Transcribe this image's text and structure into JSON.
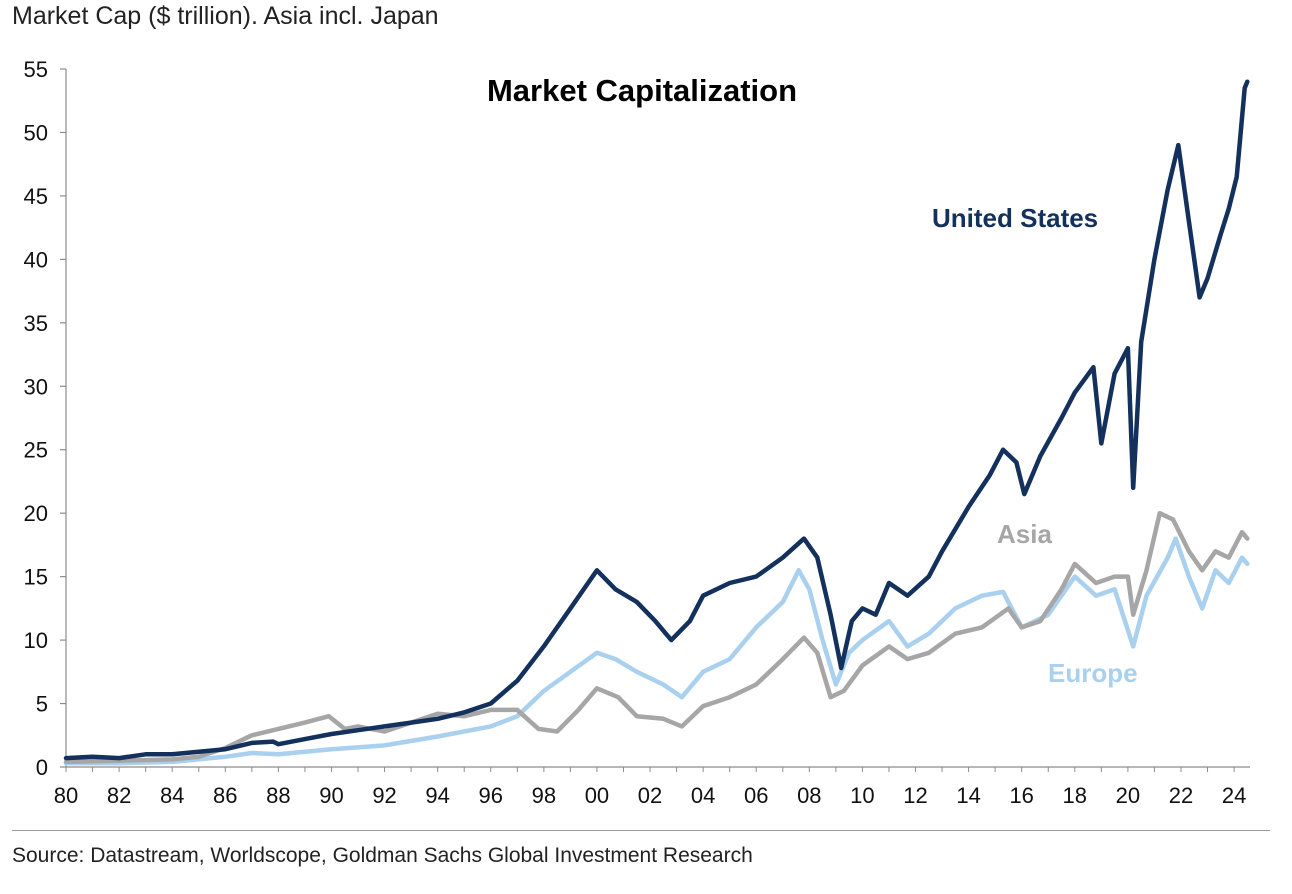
{
  "subtitle": "Market Cap ($ trillion). Asia incl. Japan",
  "source": "Source: Datastream, Worldscope, Goldman Sachs Global Investment Research",
  "chart_data": {
    "type": "line",
    "title": "Market Capitalization",
    "xlabel": "",
    "ylabel": "Market Cap ($ trillion)",
    "xlim": [
      1980,
      2024.5
    ],
    "ylim": [
      0,
      55
    ],
    "yticks": [
      0,
      5,
      10,
      15,
      20,
      25,
      30,
      35,
      40,
      45,
      50,
      55
    ],
    "xtick_labels": [
      "80",
      "82",
      "84",
      "86",
      "88",
      "90",
      "92",
      "94",
      "96",
      "98",
      "00",
      "02",
      "04",
      "06",
      "08",
      "10",
      "12",
      "14",
      "16",
      "18",
      "20",
      "22",
      "24"
    ],
    "xtick_years": [
      1980,
      1982,
      1984,
      1986,
      1988,
      1990,
      1992,
      1994,
      1996,
      1998,
      2000,
      2002,
      2004,
      2006,
      2008,
      2010,
      2012,
      2014,
      2016,
      2018,
      2020,
      2022,
      2024
    ],
    "grid": false,
    "series": [
      {
        "name": "Europe",
        "label": "Europe",
        "color": "#a9d0ee",
        "points": [
          [
            1980,
            0.3
          ],
          [
            1982,
            0.3
          ],
          [
            1984,
            0.4
          ],
          [
            1986,
            0.8
          ],
          [
            1987,
            1.1
          ],
          [
            1988,
            1.0
          ],
          [
            1990,
            1.4
          ],
          [
            1992,
            1.7
          ],
          [
            1994,
            2.4
          ],
          [
            1996,
            3.2
          ],
          [
            1997,
            4.0
          ],
          [
            1998,
            6.0
          ],
          [
            1999,
            7.5
          ],
          [
            2000,
            9.0
          ],
          [
            2000.7,
            8.5
          ],
          [
            2001.5,
            7.5
          ],
          [
            2002.5,
            6.5
          ],
          [
            2003.2,
            5.5
          ],
          [
            2004,
            7.5
          ],
          [
            2005,
            8.5
          ],
          [
            2006,
            11.0
          ],
          [
            2007,
            13.0
          ],
          [
            2007.6,
            15.5
          ],
          [
            2008,
            14.0
          ],
          [
            2008.5,
            10.0
          ],
          [
            2009,
            6.5
          ],
          [
            2009.5,
            9.0
          ],
          [
            2010,
            10.0
          ],
          [
            2011,
            11.5
          ],
          [
            2011.7,
            9.5
          ],
          [
            2012.5,
            10.5
          ],
          [
            2013.5,
            12.5
          ],
          [
            2014.5,
            13.5
          ],
          [
            2015.3,
            13.8
          ],
          [
            2016,
            11.0
          ],
          [
            2016.5,
            11.5
          ],
          [
            2017,
            12.0
          ],
          [
            2018,
            15.0
          ],
          [
            2018.8,
            13.5
          ],
          [
            2019.5,
            14.0
          ],
          [
            2020.2,
            9.5
          ],
          [
            2020.7,
            13.5
          ],
          [
            2021.5,
            16.5
          ],
          [
            2021.8,
            18.0
          ],
          [
            2022.3,
            15.0
          ],
          [
            2022.8,
            12.5
          ],
          [
            2023.3,
            15.5
          ],
          [
            2023.8,
            14.5
          ],
          [
            2024.3,
            16.5
          ],
          [
            2024.5,
            16.0
          ]
        ]
      },
      {
        "name": "Asia",
        "label": "Asia",
        "color": "#a6a6a6",
        "points": [
          [
            1980,
            0.4
          ],
          [
            1982,
            0.5
          ],
          [
            1984,
            0.6
          ],
          [
            1985,
            0.8
          ],
          [
            1986,
            1.5
          ],
          [
            1987,
            2.5
          ],
          [
            1988,
            3.0
          ],
          [
            1989,
            3.5
          ],
          [
            1989.9,
            4.0
          ],
          [
            1990.5,
            3.0
          ],
          [
            1991,
            3.2
          ],
          [
            1992,
            2.8
          ],
          [
            1993,
            3.5
          ],
          [
            1994,
            4.2
          ],
          [
            1995,
            4.0
          ],
          [
            1996,
            4.5
          ],
          [
            1997,
            4.5
          ],
          [
            1997.8,
            3.0
          ],
          [
            1998.5,
            2.8
          ],
          [
            1999.3,
            4.5
          ],
          [
            2000,
            6.2
          ],
          [
            2000.8,
            5.5
          ],
          [
            2001.5,
            4.0
          ],
          [
            2002.5,
            3.8
          ],
          [
            2003.2,
            3.2
          ],
          [
            2004,
            4.8
          ],
          [
            2005,
            5.5
          ],
          [
            2006,
            6.5
          ],
          [
            2007,
            8.5
          ],
          [
            2007.8,
            10.2
          ],
          [
            2008.3,
            9.0
          ],
          [
            2008.8,
            5.5
          ],
          [
            2009.3,
            6.0
          ],
          [
            2010,
            8.0
          ],
          [
            2011,
            9.5
          ],
          [
            2011.7,
            8.5
          ],
          [
            2012.5,
            9.0
          ],
          [
            2013.5,
            10.5
          ],
          [
            2014.5,
            11.0
          ],
          [
            2015.5,
            12.5
          ],
          [
            2016,
            11.0
          ],
          [
            2016.7,
            11.5
          ],
          [
            2017.5,
            14.0
          ],
          [
            2018,
            16.0
          ],
          [
            2018.8,
            14.5
          ],
          [
            2019.5,
            15.0
          ],
          [
            2020,
            15.0
          ],
          [
            2020.2,
            12.0
          ],
          [
            2020.7,
            15.5
          ],
          [
            2021.2,
            20.0
          ],
          [
            2021.7,
            19.5
          ],
          [
            2022.3,
            17.0
          ],
          [
            2022.8,
            15.5
          ],
          [
            2023.3,
            17.0
          ],
          [
            2023.8,
            16.5
          ],
          [
            2024.3,
            18.5
          ],
          [
            2024.5,
            18.0
          ]
        ]
      },
      {
        "name": "United States",
        "label": "United States",
        "color": "#13315c",
        "points": [
          [
            1980,
            0.7
          ],
          [
            1981,
            0.8
          ],
          [
            1982,
            0.7
          ],
          [
            1983,
            1.0
          ],
          [
            1984,
            1.0
          ],
          [
            1985,
            1.2
          ],
          [
            1986,
            1.4
          ],
          [
            1987,
            1.9
          ],
          [
            1987.8,
            2.0
          ],
          [
            1988,
            1.8
          ],
          [
            1989,
            2.2
          ],
          [
            1990,
            2.6
          ],
          [
            1991,
            2.9
          ],
          [
            1992,
            3.2
          ],
          [
            1993,
            3.5
          ],
          [
            1994,
            3.8
          ],
          [
            1995,
            4.3
          ],
          [
            1996,
            5.0
          ],
          [
            1997,
            6.8
          ],
          [
            1998,
            9.5
          ],
          [
            1999,
            12.5
          ],
          [
            2000,
            15.5
          ],
          [
            2000.7,
            14.0
          ],
          [
            2001.5,
            13.0
          ],
          [
            2002.2,
            11.5
          ],
          [
            2002.8,
            10.0
          ],
          [
            2003.5,
            11.5
          ],
          [
            2004,
            13.5
          ],
          [
            2005,
            14.5
          ],
          [
            2006,
            15.0
          ],
          [
            2007,
            16.5
          ],
          [
            2007.8,
            18.0
          ],
          [
            2008.3,
            16.5
          ],
          [
            2008.8,
            12.0
          ],
          [
            2009.2,
            7.8
          ],
          [
            2009.6,
            11.5
          ],
          [
            2010,
            12.5
          ],
          [
            2010.5,
            12.0
          ],
          [
            2011,
            14.5
          ],
          [
            2011.7,
            13.5
          ],
          [
            2012.5,
            15.0
          ],
          [
            2013,
            17.0
          ],
          [
            2014,
            20.5
          ],
          [
            2014.8,
            23.0
          ],
          [
            2015.3,
            25.0
          ],
          [
            2015.8,
            24.0
          ],
          [
            2016.1,
            21.5
          ],
          [
            2016.7,
            24.5
          ],
          [
            2017.5,
            27.5
          ],
          [
            2018,
            29.5
          ],
          [
            2018.7,
            31.5
          ],
          [
            2019,
            25.5
          ],
          [
            2019.5,
            31.0
          ],
          [
            2020,
            33.0
          ],
          [
            2020.2,
            22.0
          ],
          [
            2020.5,
            33.5
          ],
          [
            2021,
            40.0
          ],
          [
            2021.5,
            45.5
          ],
          [
            2021.9,
            49.0
          ],
          [
            2022.3,
            43.0
          ],
          [
            2022.7,
            37.0
          ],
          [
            2023,
            38.5
          ],
          [
            2023.5,
            42.0
          ],
          [
            2023.8,
            44.0
          ],
          [
            2024.1,
            46.5
          ],
          [
            2024.4,
            53.5
          ],
          [
            2024.5,
            54.0
          ]
        ]
      }
    ]
  }
}
